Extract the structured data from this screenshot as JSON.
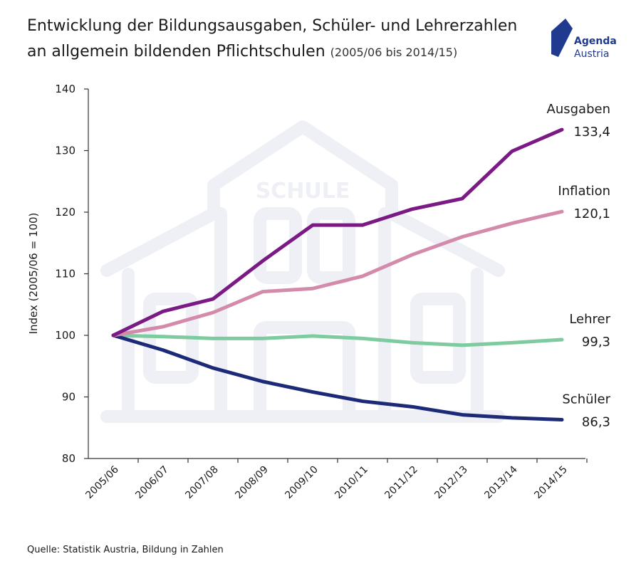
{
  "title": {
    "line1": "Entwicklung der Bildungsausgaben, Schüler- und Lehrerzahlen",
    "line2": "an allgemein bildenden Pflichtschulen",
    "subtitle": "(2005/06 bis 2014/15)"
  },
  "logo": {
    "line1": "Agenda",
    "line2": "Austria",
    "color": "#1f3a8f"
  },
  "source": "Quelle: Statistik Austria, Bildung in Zahlen",
  "watermark": {
    "text": "SCHULE",
    "icon": "school-building-icon"
  },
  "chart_data": {
    "type": "line",
    "ylabel": "Index (2005/06 = 100)",
    "ylim": [
      80,
      140
    ],
    "yticks": [
      80,
      90,
      100,
      110,
      120,
      130,
      140
    ],
    "x": [
      "2005/06",
      "2006/07",
      "2007/08",
      "2008/09",
      "2009/10",
      "2010/11",
      "2011/12",
      "2012/13",
      "2013/14",
      "2014/15"
    ],
    "grid": false,
    "series": [
      {
        "name": "Ausgaben",
        "color": "#7b1a85",
        "end_label": "133,4",
        "values": [
          100,
          103.9,
          105.9,
          112.1,
          117.9,
          117.9,
          120.5,
          122.2,
          129.9,
          133.4
        ]
      },
      {
        "name": "Inflation",
        "color": "#d48aaa",
        "end_label": "120,1",
        "values": [
          100,
          101.4,
          103.7,
          107.1,
          107.6,
          109.6,
          113.1,
          116.0,
          118.2,
          120.1
        ]
      },
      {
        "name": "Lehrer",
        "color": "#7ecba0",
        "end_label": "99,3",
        "values": [
          100,
          99.8,
          99.5,
          99.5,
          99.9,
          99.5,
          98.8,
          98.4,
          98.8,
          99.3
        ]
      },
      {
        "name": "Schüler",
        "color": "#1c2a78",
        "end_label": "86,3",
        "values": [
          100,
          97.6,
          94.7,
          92.5,
          90.8,
          89.3,
          88.4,
          87.1,
          86.6,
          86.3
        ]
      }
    ]
  }
}
